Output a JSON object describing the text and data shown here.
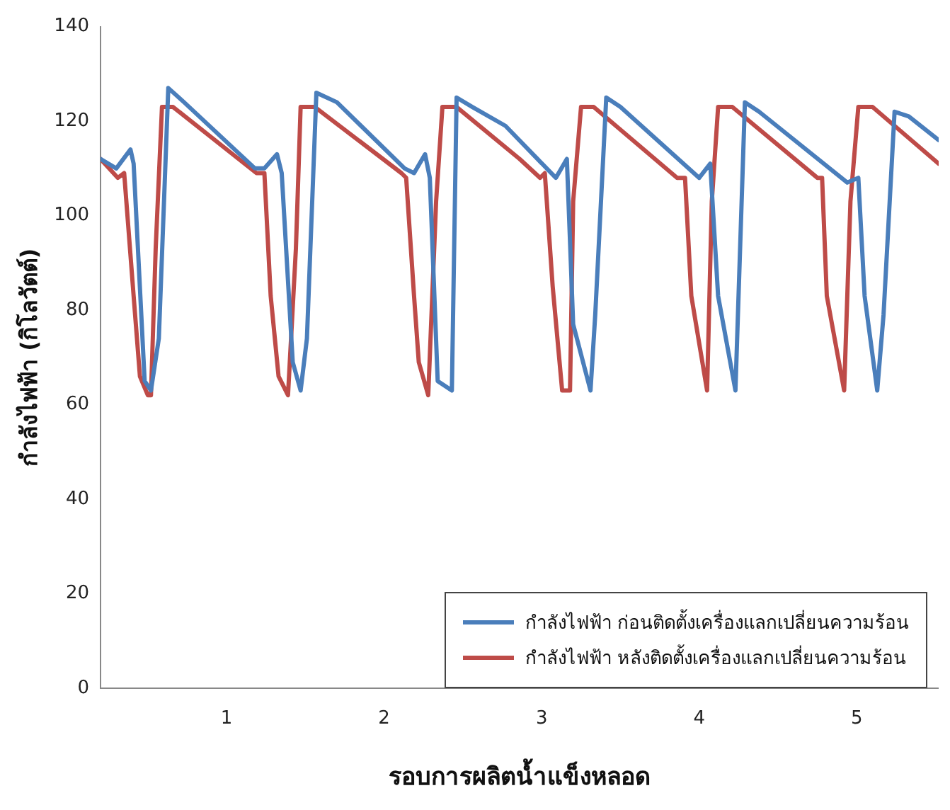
{
  "chart_data": {
    "type": "line",
    "xlabel": "รอบการผลิตน้ำแข็งหลอด",
    "ylabel": "กำลังไฟฟ้า (กิโลวัตต์)",
    "xlim": [
      0.2,
      5.52
    ],
    "xticks": [
      1,
      2,
      3,
      4,
      5
    ],
    "ylim": [
      0,
      140
    ],
    "yticks": [
      0,
      20,
      40,
      60,
      80,
      100,
      120,
      140
    ],
    "grid": false,
    "legend": "bottom right",
    "marker": "none",
    "line_style": "solid",
    "series": [
      {
        "name": "กำลังไฟฟ้า ก่อนติดตั้งเครื่องแลกเปลี่ยนความร้อน",
        "color": "#4a7ebb",
        "x": [
          0.2,
          0.3,
          0.39,
          0.41,
          0.48,
          0.52,
          0.57,
          0.63,
          0.73,
          1.18,
          1.24,
          1.32,
          1.35,
          1.42,
          1.47,
          1.51,
          1.57,
          1.7,
          2.13,
          2.19,
          2.26,
          2.29,
          2.34,
          2.43,
          2.46,
          2.56,
          2.77,
          3.09,
          3.16,
          3.2,
          3.31,
          3.34,
          3.41,
          3.5,
          4.0,
          4.07,
          4.12,
          4.23,
          4.29,
          4.38,
          4.94,
          5.01,
          5.05,
          5.13,
          5.17,
          5.24,
          5.33,
          5.52
        ],
        "values": [
          112,
          110,
          114,
          111,
          65,
          63,
          74,
          127,
          124,
          110,
          110,
          113,
          109,
          69,
          63,
          74,
          126,
          124,
          110,
          109,
          113,
          108,
          65,
          63,
          125,
          123,
          119,
          108,
          112,
          77,
          63,
          79,
          125,
          123,
          108,
          111,
          83,
          63,
          124,
          122,
          107,
          108,
          83,
          63,
          79,
          122,
          121,
          116
        ]
      },
      {
        "name": "กำลังไฟฟ้า หลังติดตั้งเครื่องแลกเปลี่ยนความร้อน",
        "color": "#be4b48",
        "x": [
          0.2,
          0.31,
          0.35,
          0.41,
          0.45,
          0.5,
          0.52,
          0.55,
          0.59,
          0.66,
          1.19,
          1.24,
          1.28,
          1.33,
          1.39,
          1.44,
          1.47,
          1.56,
          2.11,
          2.14,
          2.19,
          2.22,
          2.28,
          2.33,
          2.37,
          2.46,
          2.86,
          2.99,
          3.02,
          3.07,
          3.13,
          3.18,
          3.2,
          3.25,
          3.33,
          3.86,
          3.91,
          3.95,
          4.05,
          4.08,
          4.12,
          4.21,
          4.75,
          4.78,
          4.81,
          4.92,
          4.96,
          5.01,
          5.1,
          5.52
        ],
        "values": [
          112,
          108,
          109,
          83,
          66,
          62,
          62,
          93,
          123,
          123,
          109,
          109,
          83,
          66,
          62,
          93,
          123,
          123,
          109,
          108,
          83,
          69,
          62,
          103,
          123,
          123,
          112,
          108,
          109,
          85,
          63,
          63,
          103,
          123,
          123,
          108,
          108,
          83,
          63,
          103,
          123,
          123,
          108,
          108,
          83,
          63,
          103,
          123,
          123,
          111
        ]
      }
    ]
  }
}
